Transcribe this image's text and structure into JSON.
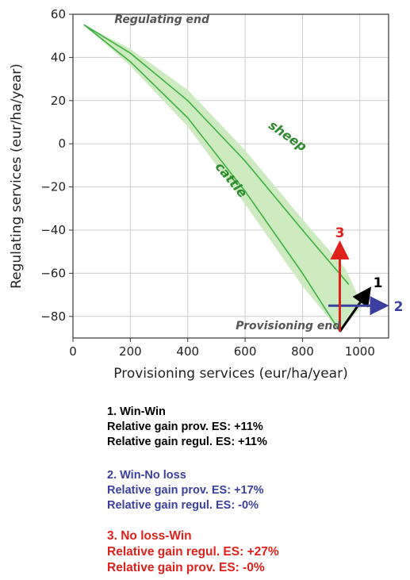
{
  "chart_data": {
    "type": "area",
    "xlabel": "Provisioning services (eur/ha/year)",
    "ylabel": "Regulating services (eur/ha/year)",
    "xlim": [
      0,
      1100
    ],
    "ylim": [
      -90,
      60
    ],
    "xticks": [
      0,
      200,
      400,
      600,
      800,
      1000
    ],
    "yticks": [
      -80,
      -60,
      -40,
      -20,
      0,
      20,
      40,
      60
    ],
    "grid": true,
    "series": [
      {
        "name": "sheep",
        "x": [
          40,
          200,
          400,
          600,
          800,
          960
        ],
        "y": [
          55,
          42,
          20,
          -8,
          -40,
          -65
        ]
      },
      {
        "name": "cattle",
        "x": [
          40,
          200,
          400,
          600,
          800,
          930
        ],
        "y": [
          55,
          38,
          12,
          -22,
          -60,
          -87
        ]
      }
    ],
    "band": {
      "upper": {
        "x": [
          40,
          200,
          400,
          600,
          800,
          950,
          1010
        ],
        "y": [
          55,
          44,
          25,
          -3,
          -35,
          -58,
          -75
        ]
      },
      "lower": {
        "x": [
          40,
          200,
          400,
          600,
          800,
          930
        ],
        "y": [
          55,
          36,
          8,
          -28,
          -66,
          -87
        ]
      }
    },
    "annotations": [
      {
        "text": "Regulating end",
        "x": 310,
        "y": 56
      },
      {
        "text": "Provisioning end",
        "x": 750,
        "y": -86
      },
      {
        "text": "sheep",
        "x": 740,
        "y": 2
      },
      {
        "text": "cattle",
        "x": 540,
        "y": -18
      }
    ],
    "arrows": [
      {
        "id": "1",
        "from": [
          930,
          -87
        ],
        "to": [
          1030,
          -68
        ],
        "color": "#000000"
      },
      {
        "id": "2",
        "from": [
          890,
          -75
        ],
        "to": [
          1085,
          -75
        ],
        "color": "#3a3fa0"
      },
      {
        "id": "3",
        "from": [
          930,
          -87
        ],
        "to": [
          930,
          -47
        ],
        "color": "#e0201a"
      }
    ],
    "colors": {
      "band_fill": "#cdeac0",
      "line": "#3cb043",
      "text_green": "#2e8b2e"
    }
  },
  "legend": {
    "items": [
      {
        "title": "1. Win-Win",
        "lines": [
          "Relative gain prov. ES: +11%",
          "Relative gain regul. ES: +11%"
        ],
        "color": "#000000"
      },
      {
        "title": "2. Win-No loss",
        "lines": [
          "Relative gain prov. ES: +17%",
          "Relative gain regul. ES: -0%"
        ],
        "color": "#3a3fa0"
      },
      {
        "title": "3. No loss-Win",
        "lines": [
          "Relative gain regul. ES: +27%",
          "Relative gain prov. ES: -0%"
        ],
        "color": "#e0201a"
      }
    ]
  }
}
